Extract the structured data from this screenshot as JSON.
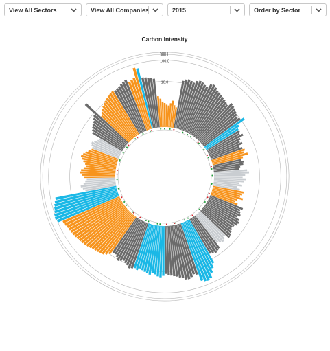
{
  "filters": {
    "sector": {
      "selected": "View All Sectors",
      "icon": "chevron-down-icon"
    },
    "company": {
      "selected": "View All Companies",
      "icon": "chevron-down-icon"
    },
    "year": {
      "selected": "2015",
      "icon": "chevron-down-icon"
    },
    "order": {
      "selected": "Order by Sector",
      "icon": "chevron-down-icon"
    }
  },
  "chart_data": {
    "type": "bar",
    "layout": "radial",
    "title": "Carbon Intensity",
    "scale": "log",
    "rings": [
      {
        "value": 10,
        "label": "10.0"
      },
      {
        "value": 100,
        "label": "100.0"
      },
      {
        "value": 300,
        "label": "300.0"
      },
      {
        "value": 500,
        "label": "500.0"
      }
    ],
    "colors": {
      "gray": "#6b6b6b",
      "orange": "#f7941d",
      "cyan": "#1ab8e6",
      "light": "#c9cdd1",
      "ring": "#b5b5b5",
      "dot_green": "#1f9e3a",
      "dot_red": "#d9242b"
    },
    "segments": [
      {
        "color": "gray",
        "count": 27,
        "values": [
          12,
          14,
          15,
          14,
          13,
          16,
          18,
          17,
          15,
          14,
          20,
          22,
          19,
          16,
          15,
          14,
          13,
          12,
          11,
          10,
          14,
          13,
          12,
          11,
          10,
          9,
          10
        ]
      },
      {
        "color": "cyan",
        "count": 3,
        "values": [
          13,
          7,
          6
        ]
      },
      {
        "color": "gray",
        "count": 8,
        "values": [
          6,
          5.5,
          6.5,
          5,
          4.5,
          5,
          4,
          4.5
        ]
      },
      {
        "color": "orange",
        "count": 4,
        "values": [
          5,
          4.5,
          5.5,
          4
        ]
      },
      {
        "color": "gray",
        "count": 5,
        "values": [
          3.5,
          4,
          3.8,
          3.2,
          3
        ]
      },
      {
        "color": "light",
        "count": 10,
        "values": [
          4.5,
          5,
          4,
          3.5,
          4.2,
          3.8,
          3,
          3.5,
          2.8,
          3.2
        ]
      },
      {
        "color": "orange",
        "count": 7,
        "values": [
          4,
          3.8,
          3.5,
          4.2,
          3.2,
          3,
          3.5
        ]
      },
      {
        "color": "gray",
        "count": 14,
        "values": [
          5,
          4.5,
          4.8,
          5.2,
          4.6,
          5.5,
          6,
          5.8,
          5.2,
          4.9,
          5.3,
          5.7,
          6.2,
          6.5
        ]
      },
      {
        "color": "light",
        "count": 5,
        "values": [
          5,
          5.5,
          6,
          5.5,
          5
        ]
      },
      {
        "color": "gray",
        "count": 5,
        "values": [
          7,
          7.5,
          8,
          7.2,
          6.8
        ]
      },
      {
        "color": "cyan",
        "count": 7,
        "values": [
          14,
          20,
          30,
          50,
          60,
          55,
          45
        ]
      },
      {
        "color": "gray",
        "count": 12,
        "values": [
          20,
          18,
          22,
          25,
          24,
          20,
          18,
          16,
          15,
          14,
          13,
          12
        ]
      },
      {
        "color": "cyan",
        "count": 12,
        "values": [
          14,
          16,
          15,
          13,
          12,
          14,
          13,
          12,
          11,
          10,
          12,
          11
        ]
      },
      {
        "color": "gray",
        "count": 10,
        "values": [
          12,
          13,
          11,
          10,
          9,
          10,
          11,
          9,
          8,
          8
        ]
      },
      {
        "color": "orange",
        "count": 20,
        "values": [
          10,
          12,
          14,
          15,
          16,
          17,
          18,
          20,
          22,
          24,
          26,
          28,
          30,
          32,
          34,
          36,
          38,
          40,
          45,
          50
        ]
      },
      {
        "color": "cyan",
        "count": 8,
        "values": [
          100,
          120,
          110,
          90,
          80,
          70,
          60,
          50
        ]
      },
      {
        "color": "light",
        "count": 6,
        "values": [
          4,
          4.5,
          5,
          4.2,
          3.8,
          3.5
        ]
      },
      {
        "color": "orange",
        "count": 14,
        "values": [
          4,
          4.5,
          5,
          4.8,
          4.2,
          3.8,
          4,
          4.5,
          5,
          5.5,
          5,
          4.5,
          4,
          3.5
        ]
      },
      {
        "color": "light",
        "count": 6,
        "values": [
          3.5,
          3.8,
          4,
          3.6,
          3.2,
          3
        ]
      },
      {
        "color": "gray",
        "count": 8,
        "values": [
          5,
          5.5,
          6,
          6.5,
          7,
          8,
          9,
          30
        ]
      },
      {
        "color": "orange",
        "count": 10,
        "values": [
          6,
          7,
          8,
          9,
          10,
          11,
          12,
          13,
          14,
          15
        ]
      },
      {
        "color": "gray",
        "count": 6,
        "values": [
          14,
          15,
          16,
          18,
          20,
          22
        ]
      },
      {
        "color": "orange",
        "count": 4,
        "values": [
          16,
          18,
          20,
          60
        ]
      },
      {
        "color": "cyan",
        "count": 1,
        "values": [
          50
        ]
      },
      {
        "color": "gray",
        "count": 5,
        "values": [
          17,
          16,
          15,
          14,
          13
        ]
      },
      {
        "color": "orange",
        "count": 10,
        "values": [
          4,
          3.5,
          3,
          2.8,
          2.6,
          2.5,
          2.8,
          3.2,
          2.6,
          2.4
        ]
      }
    ]
  }
}
